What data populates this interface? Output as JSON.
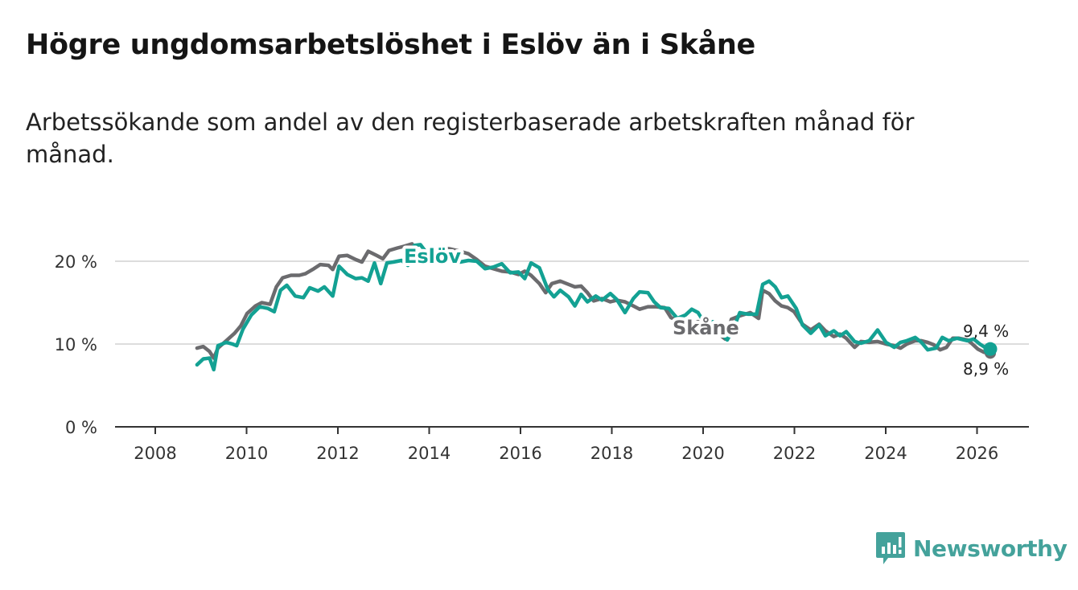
{
  "header": {
    "title": "Högre ungdomsarbetslöshet i Eslöv än i Skåne",
    "subtitle": "Arbetssökande som andel av den registerbaserade arbetskraften månad för månad."
  },
  "brand": {
    "name": "Newsworthy",
    "color": "#44a29b",
    "icon": "newsworthy-logo-icon"
  },
  "chart_data": {
    "type": "line",
    "title": "Högre ungdomsarbetslöshet i Eslöv än i Skåne",
    "xlabel": "",
    "ylabel": "",
    "xlim": [
      2007.0,
      2027.0
    ],
    "ylim": [
      0,
      22
    ],
    "x_ticks": [
      2008,
      2010,
      2012,
      2014,
      2016,
      2018,
      2020,
      2022,
      2024,
      2026
    ],
    "y_ticks": [
      {
        "value": 0,
        "label": "0 %"
      },
      {
        "value": 10,
        "label": "10 %"
      },
      {
        "value": 20,
        "label": "20 %"
      }
    ],
    "grid": true,
    "series": [
      {
        "name": "Skåne",
        "label": "Skåne",
        "color": "#6b6b6e",
        "end_label": "8,9 %",
        "points": [
          [
            2008.0,
            9.5
          ],
          [
            2008.15,
            9.7
          ],
          [
            2008.3,
            9.1
          ],
          [
            2008.4,
            8.3
          ],
          [
            2008.5,
            9.5
          ],
          [
            2008.7,
            10.4
          ],
          [
            2008.9,
            11.3
          ],
          [
            2009.05,
            12.2
          ],
          [
            2009.2,
            13.7
          ],
          [
            2009.4,
            14.6
          ],
          [
            2009.55,
            15.0
          ],
          [
            2009.75,
            14.8
          ],
          [
            2009.9,
            16.9
          ],
          [
            2010.05,
            18.0
          ],
          [
            2010.25,
            18.3
          ],
          [
            2010.45,
            18.3
          ],
          [
            2010.6,
            18.5
          ],
          [
            2010.8,
            19.1
          ],
          [
            2010.95,
            19.6
          ],
          [
            2011.15,
            19.5
          ],
          [
            2011.25,
            19.0
          ],
          [
            2011.4,
            20.6
          ],
          [
            2011.6,
            20.7
          ],
          [
            2011.8,
            20.2
          ],
          [
            2011.95,
            19.9
          ],
          [
            2012.1,
            21.2
          ],
          [
            2012.3,
            20.7
          ],
          [
            2012.45,
            20.3
          ],
          [
            2012.6,
            21.3
          ],
          [
            2012.8,
            21.6
          ],
          [
            2012.95,
            21.8
          ],
          [
            2013.15,
            22.1
          ],
          [
            2013.25,
            20.9
          ],
          [
            2013.45,
            20.3
          ],
          [
            2013.55,
            20.1
          ],
          [
            2013.7,
            21.5
          ],
          [
            2013.9,
            21.6
          ],
          [
            2014.05,
            21.5
          ],
          [
            2014.3,
            21.2
          ],
          [
            2014.5,
            20.9
          ],
          [
            2014.7,
            20.2
          ],
          [
            2014.9,
            19.4
          ],
          [
            2015.1,
            19.1
          ],
          [
            2015.3,
            18.8
          ],
          [
            2015.5,
            18.7
          ],
          [
            2015.7,
            18.4
          ],
          [
            2015.85,
            18.8
          ],
          [
            2016.0,
            18.3
          ],
          [
            2016.2,
            17.3
          ],
          [
            2016.35,
            16.2
          ],
          [
            2016.5,
            17.3
          ],
          [
            2016.7,
            17.6
          ],
          [
            2016.9,
            17.2
          ],
          [
            2017.05,
            16.9
          ],
          [
            2017.2,
            17.0
          ],
          [
            2017.35,
            16.2
          ],
          [
            2017.5,
            15.2
          ],
          [
            2017.7,
            15.5
          ],
          [
            2017.9,
            15.1
          ],
          [
            2018.05,
            15.3
          ],
          [
            2018.25,
            15.1
          ],
          [
            2018.45,
            14.6
          ],
          [
            2018.6,
            14.2
          ],
          [
            2018.8,
            14.5
          ],
          [
            2019.0,
            14.5
          ],
          [
            2019.2,
            14.4
          ],
          [
            2019.35,
            13.2
          ],
          [
            2019.55,
            12.7
          ],
          [
            2019.7,
            11.3
          ],
          [
            2019.85,
            12.4
          ],
          [
            2020.0,
            12.7
          ],
          [
            2020.2,
            12.0
          ],
          [
            2020.4,
            11.6
          ],
          [
            2020.65,
            10.6
          ],
          [
            2020.8,
            13.0
          ],
          [
            2021.0,
            13.4
          ],
          [
            2021.25,
            13.8
          ],
          [
            2021.45,
            13.1
          ],
          [
            2021.55,
            16.5
          ],
          [
            2021.7,
            16.1
          ],
          [
            2021.85,
            15.2
          ],
          [
            2022.0,
            14.6
          ],
          [
            2022.15,
            14.4
          ],
          [
            2022.3,
            13.9
          ],
          [
            2022.5,
            12.4
          ],
          [
            2022.7,
            11.7
          ],
          [
            2022.9,
            12.4
          ],
          [
            2023.05,
            11.6
          ],
          [
            2023.25,
            10.9
          ],
          [
            2023.4,
            11.2
          ],
          [
            2023.55,
            10.7
          ],
          [
            2023.75,
            9.6
          ],
          [
            2023.9,
            10.3
          ],
          [
            2024.1,
            10.2
          ],
          [
            2024.3,
            10.3
          ],
          [
            2024.5,
            10.0
          ],
          [
            2024.7,
            9.8
          ],
          [
            2024.85,
            9.5
          ],
          [
            2025.0,
            10.0
          ],
          [
            2025.2,
            10.4
          ],
          [
            2025.35,
            10.4
          ],
          [
            2025.5,
            10.2
          ],
          [
            2025.65,
            9.9
          ],
          [
            2025.8,
            9.3
          ],
          [
            2025.95,
            9.6
          ],
          [
            2026.1,
            10.7
          ],
          [
            2026.25,
            10.7
          ],
          [
            2026.45,
            10.5
          ],
          [
            2026.55,
            10.1
          ],
          [
            2026.7,
            9.4
          ],
          [
            2026.85,
            9.0
          ],
          [
            2027.0,
            8.9
          ]
        ]
      },
      {
        "name": "Eslöv",
        "label": "Eslöv",
        "color": "#13a193",
        "end_label": "9,4 %",
        "points": [
          [
            2008.0,
            7.5
          ],
          [
            2008.15,
            8.2
          ],
          [
            2008.3,
            8.3
          ],
          [
            2008.4,
            6.9
          ],
          [
            2008.5,
            9.8
          ],
          [
            2008.7,
            10.2
          ],
          [
            2008.85,
            10.0
          ],
          [
            2008.95,
            9.8
          ],
          [
            2009.1,
            11.8
          ],
          [
            2009.3,
            13.5
          ],
          [
            2009.5,
            14.5
          ],
          [
            2009.7,
            14.3
          ],
          [
            2009.85,
            13.9
          ],
          [
            2010.0,
            16.5
          ],
          [
            2010.15,
            17.1
          ],
          [
            2010.35,
            15.8
          ],
          [
            2010.55,
            15.6
          ],
          [
            2010.7,
            16.8
          ],
          [
            2010.9,
            16.4
          ],
          [
            2011.05,
            16.9
          ],
          [
            2011.25,
            15.8
          ],
          [
            2011.4,
            19.4
          ],
          [
            2011.6,
            18.4
          ],
          [
            2011.8,
            17.9
          ],
          [
            2011.95,
            18.0
          ],
          [
            2012.1,
            17.6
          ],
          [
            2012.25,
            19.8
          ],
          [
            2012.4,
            17.3
          ],
          [
            2012.55,
            19.8
          ],
          [
            2012.7,
            19.9
          ],
          [
            2012.9,
            20.1
          ],
          [
            2013.05,
            19.5
          ],
          [
            2013.2,
            21.9
          ],
          [
            2013.35,
            22.0
          ],
          [
            2013.5,
            21.0
          ],
          [
            2013.6,
            19.7
          ],
          [
            2013.75,
            21.4
          ],
          [
            2013.9,
            21.6
          ],
          [
            2014.05,
            20.9
          ],
          [
            2014.3,
            19.9
          ],
          [
            2014.5,
            20.1
          ],
          [
            2014.7,
            20.0
          ],
          [
            2014.9,
            19.1
          ],
          [
            2015.1,
            19.3
          ],
          [
            2015.3,
            19.7
          ],
          [
            2015.5,
            18.6
          ],
          [
            2015.7,
            18.7
          ],
          [
            2015.85,
            17.9
          ],
          [
            2016.0,
            19.8
          ],
          [
            2016.2,
            19.2
          ],
          [
            2016.4,
            16.6
          ],
          [
            2016.55,
            15.7
          ],
          [
            2016.7,
            16.5
          ],
          [
            2016.9,
            15.7
          ],
          [
            2017.05,
            14.6
          ],
          [
            2017.2,
            16.0
          ],
          [
            2017.35,
            15.1
          ],
          [
            2017.55,
            15.8
          ],
          [
            2017.7,
            15.3
          ],
          [
            2017.9,
            16.1
          ],
          [
            2018.05,
            15.4
          ],
          [
            2018.25,
            13.8
          ],
          [
            2018.45,
            15.5
          ],
          [
            2018.6,
            16.3
          ],
          [
            2018.8,
            16.2
          ],
          [
            2018.95,
            15.1
          ],
          [
            2019.1,
            14.4
          ],
          [
            2019.3,
            14.3
          ],
          [
            2019.5,
            13.1
          ],
          [
            2019.7,
            13.5
          ],
          [
            2019.85,
            14.2
          ],
          [
            2020.0,
            13.8
          ],
          [
            2020.15,
            12.6
          ],
          [
            2020.35,
            12.7
          ],
          [
            2020.55,
            11.4
          ],
          [
            2020.7,
            10.5
          ],
          [
            2020.85,
            11.9
          ],
          [
            2021.0,
            13.8
          ],
          [
            2021.2,
            13.6
          ],
          [
            2021.4,
            13.6
          ],
          [
            2021.55,
            17.2
          ],
          [
            2021.7,
            17.6
          ],
          [
            2021.85,
            16.9
          ],
          [
            2022.0,
            15.6
          ],
          [
            2022.15,
            15.8
          ],
          [
            2022.35,
            14.3
          ],
          [
            2022.5,
            12.3
          ],
          [
            2022.7,
            11.3
          ],
          [
            2022.9,
            12.3
          ],
          [
            2023.05,
            11.0
          ],
          [
            2023.25,
            11.6
          ],
          [
            2023.4,
            11.0
          ],
          [
            2023.55,
            11.5
          ],
          [
            2023.75,
            10.3
          ],
          [
            2023.9,
            10.1
          ],
          [
            2024.1,
            10.4
          ],
          [
            2024.3,
            11.7
          ],
          [
            2024.5,
            10.2
          ],
          [
            2024.7,
            9.6
          ],
          [
            2024.85,
            10.2
          ],
          [
            2025.0,
            10.4
          ],
          [
            2025.2,
            10.8
          ],
          [
            2025.35,
            10.2
          ],
          [
            2025.5,
            9.3
          ],
          [
            2025.7,
            9.5
          ],
          [
            2025.85,
            10.8
          ],
          [
            2026.0,
            10.4
          ],
          [
            2026.2,
            10.7
          ],
          [
            2026.45,
            10.4
          ],
          [
            2026.6,
            10.6
          ],
          [
            2026.75,
            10.0
          ],
          [
            2026.9,
            9.5
          ],
          [
            2027.0,
            9.4
          ]
        ]
      }
    ]
  }
}
